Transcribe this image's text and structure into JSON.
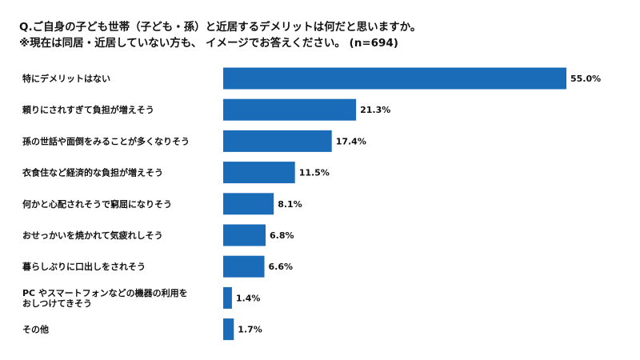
{
  "title": {
    "line1": "Q.ご自身の子ども世帯（子ども・孫）と近居するデメリットは何だと思いますか。",
    "line2": "※現在は同居・近居していない方も、 イメージでお答えください。 (n=694)"
  },
  "chart_data": {
    "type": "bar",
    "orientation": "horizontal",
    "categories": [
      "特にデメリットはない",
      "頼りにされすぎて負担が増えそう",
      "孫の世話や面倒をみることが多くなりそう",
      "衣食住など経済的な負担が増えそう",
      "何かと心配されそうで窮屈になりそう",
      "おせっかいを焼かれて気疲れしそう",
      "暮らしぶりに口出しをされそう",
      "PC やスマートフォンなどの機器の利用を\nおしつけてきそう",
      "その他"
    ],
    "values": [
      55.0,
      21.3,
      17.4,
      11.5,
      8.1,
      6.8,
      6.6,
      1.4,
      1.7
    ],
    "value_labels": [
      "55.0%",
      "21.3%",
      "17.4%",
      "11.5%",
      "8.1%",
      "6.8%",
      "6.6%",
      "1.4%",
      "1.7%"
    ],
    "bar_color": "#1a6bb8",
    "xlim": [
      0,
      56
    ],
    "grid": false,
    "legend": "none"
  }
}
